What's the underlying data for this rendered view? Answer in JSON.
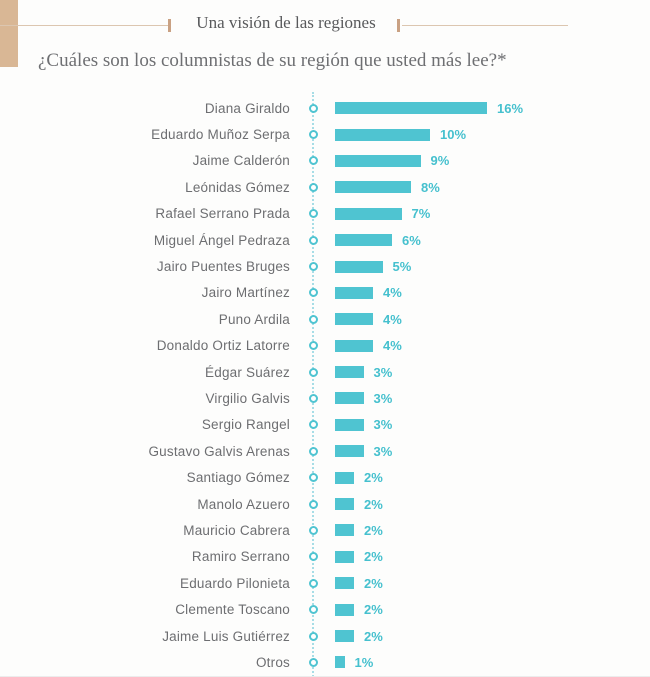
{
  "header": {
    "section_title": "Una visión de las regiones",
    "question": "¿Cuáles son los columnistas de su región que usted más lee?*"
  },
  "colors": {
    "bar_teal": "#4fc4d1",
    "value_label_teal": "#45c0ce",
    "accent_tan": "#d9b795",
    "rule_tan": "#dcc6b0",
    "tick_tan": "#c9a183",
    "label_gray": "#6d6e71",
    "title_gray": "#58595b",
    "dotted_axis_line": "#a7dde6"
  },
  "chart_data": {
    "type": "bar",
    "orientation": "horizontal",
    "title": "Una visión de las regiones",
    "subtitle": "¿Cuáles son los columnistas de su región que usted más lee?*",
    "unit": "%",
    "categories": [
      "Diana Giraldo",
      "Eduardo Muñoz Serpa",
      "Jaime Calderón",
      "Leónidas Gómez",
      "Rafael Serrano Prada",
      "Miguel Ángel Pedraza",
      "Jairo Puentes Bruges",
      "Jairo Martínez",
      "Puno Ardila",
      "Donaldo Ortiz Latorre",
      "Édgar Suárez",
      "Virgilio Galvis",
      "Sergio Rangel",
      "Gustavo Galvis Arenas",
      "Santiago Gómez",
      "Manolo Azuero",
      "Mauricio Cabrera",
      "Ramiro Serrano",
      "Eduardo Pilonieta",
      "Clemente Toscano",
      "Jaime Luis Gutiérrez",
      "Otros"
    ],
    "values": [
      16,
      10,
      9,
      8,
      7,
      6,
      5,
      4,
      4,
      4,
      3,
      3,
      3,
      3,
      2,
      2,
      2,
      2,
      2,
      2,
      2,
      1
    ],
    "xlim": [
      0,
      16
    ],
    "grid": false,
    "legend": false,
    "bar_color": "#4fc4d1"
  }
}
